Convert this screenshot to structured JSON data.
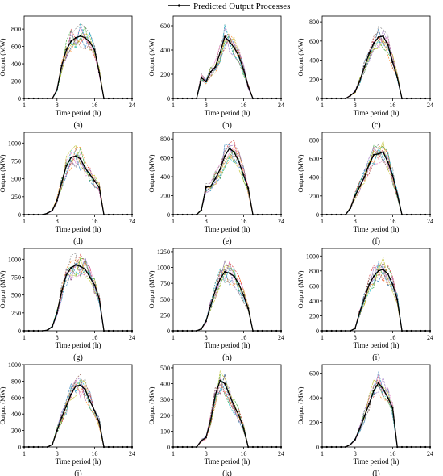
{
  "legend": {
    "label": "Predicted Output Processes"
  },
  "colors": {
    "predicted": "#000000",
    "scenarios": [
      "#1f77b4",
      "#ff7f0e",
      "#2ca02c",
      "#d62728",
      "#9467bd",
      "#8c564b",
      "#e377c2",
      "#7f7f7f",
      "#bcbd22",
      "#17becf"
    ]
  },
  "chart_data": [
    {
      "type": "line",
      "panel_label": "(a)",
      "xlabel": "Time period (h)",
      "ylabel": "Output (MW)",
      "x_ticks": [
        1,
        8,
        16,
        24
      ],
      "y_ticks": [
        0,
        200,
        400,
        600,
        800
      ],
      "xlim": [
        1,
        24
      ],
      "ylim": [
        0,
        950
      ],
      "x": [
        1,
        2,
        3,
        4,
        5,
        6,
        7,
        8,
        9,
        10,
        11,
        12,
        13,
        14,
        15,
        16,
        17,
        18,
        19,
        20,
        21,
        22,
        23,
        24
      ],
      "series": [
        {
          "values": [
            0,
            0,
            0,
            0,
            0,
            0,
            0,
            100,
            380,
            560,
            660,
            700,
            720,
            700,
            650,
            560,
            300,
            0,
            0,
            0,
            0,
            0,
            0,
            0
          ]
        }
      ]
    },
    {
      "type": "line",
      "panel_label": "(b)",
      "xlabel": "Time period (h)",
      "ylabel": "Output (MW)",
      "x_ticks": [
        1,
        8,
        16,
        24
      ],
      "y_ticks": [
        0,
        200,
        400,
        600
      ],
      "xlim": [
        1,
        24
      ],
      "ylim": [
        0,
        680
      ],
      "x": [
        1,
        2,
        3,
        4,
        5,
        6,
        7,
        8,
        9,
        10,
        11,
        12,
        13,
        14,
        15,
        16,
        17,
        18,
        19,
        20,
        21,
        22,
        23,
        24
      ],
      "series": [
        {
          "values": [
            0,
            0,
            0,
            0,
            0,
            0,
            170,
            140,
            220,
            260,
            380,
            510,
            470,
            420,
            350,
            240,
            100,
            0,
            0,
            0,
            0,
            0,
            0,
            0
          ]
        }
      ]
    },
    {
      "type": "line",
      "panel_label": "(c)",
      "xlabel": "Time period (h)",
      "ylabel": "Output (MW)",
      "x_ticks": [
        1,
        8,
        16,
        24
      ],
      "y_ticks": [
        0,
        200,
        400,
        600,
        800
      ],
      "xlim": [
        1,
        24
      ],
      "ylim": [
        0,
        860
      ],
      "x": [
        1,
        2,
        3,
        4,
        5,
        6,
        7,
        8,
        9,
        10,
        11,
        12,
        13,
        14,
        15,
        16,
        17,
        18,
        19,
        20,
        21,
        22,
        23,
        24
      ],
      "series": [
        {
          "values": [
            0,
            0,
            0,
            0,
            0,
            0,
            30,
            70,
            180,
            330,
            470,
            580,
            640,
            650,
            560,
            380,
            220,
            0,
            0,
            0,
            0,
            0,
            0,
            0
          ]
        }
      ]
    },
    {
      "type": "line",
      "panel_label": "(d)",
      "xlabel": "Time period (h)",
      "ylabel": "Output (MW)",
      "x_ticks": [
        1,
        8,
        16,
        24
      ],
      "y_ticks": [
        0,
        250,
        500,
        750,
        1000
      ],
      "xlim": [
        1,
        24
      ],
      "ylim": [
        0,
        1150
      ],
      "x": [
        1,
        2,
        3,
        4,
        5,
        6,
        7,
        8,
        9,
        10,
        11,
        12,
        13,
        14,
        15,
        16,
        17,
        18,
        19,
        20,
        21,
        22,
        23,
        24
      ],
      "series": [
        {
          "values": [
            0,
            0,
            0,
            0,
            0,
            20,
            60,
            200,
            450,
            680,
            800,
            820,
            780,
            650,
            560,
            470,
            380,
            0,
            0,
            0,
            0,
            0,
            0,
            0
          ]
        }
      ]
    },
    {
      "type": "line",
      "panel_label": "(e)",
      "xlabel": "Time period (h)",
      "ylabel": "Output (MW)",
      "x_ticks": [
        1,
        8,
        16,
        24
      ],
      "y_ticks": [
        0,
        200,
        400,
        600,
        800
      ],
      "xlim": [
        1,
        24
      ],
      "ylim": [
        0,
        870
      ],
      "x": [
        1,
        2,
        3,
        4,
        5,
        6,
        7,
        8,
        9,
        10,
        11,
        12,
        13,
        14,
        15,
        16,
        17,
        18,
        19,
        20,
        21,
        22,
        23,
        24
      ],
      "series": [
        {
          "values": [
            0,
            0,
            0,
            0,
            0,
            0,
            50,
            290,
            300,
            380,
            480,
            620,
            700,
            660,
            560,
            420,
            280,
            0,
            0,
            0,
            0,
            0,
            0,
            0
          ]
        }
      ]
    },
    {
      "type": "line",
      "panel_label": "(f)",
      "xlabel": "Time period (h)",
      "ylabel": "Output (MW)",
      "x_ticks": [
        1,
        8,
        16,
        24
      ],
      "y_ticks": [
        0,
        200,
        400,
        600,
        800
      ],
      "xlim": [
        1,
        24
      ],
      "ylim": [
        0,
        880
      ],
      "x": [
        1,
        2,
        3,
        4,
        5,
        6,
        7,
        8,
        9,
        10,
        11,
        12,
        13,
        14,
        15,
        16,
        17,
        18,
        19,
        20,
        21,
        22,
        23,
        24
      ],
      "series": [
        {
          "values": [
            0,
            0,
            0,
            0,
            0,
            0,
            70,
            200,
            300,
            400,
            540,
            640,
            650,
            670,
            560,
            420,
            220,
            0,
            0,
            0,
            0,
            0,
            0,
            0
          ]
        }
      ]
    },
    {
      "type": "line",
      "panel_label": "(g)",
      "xlabel": "Time period (h)",
      "ylabel": "Output (MW)",
      "x_ticks": [
        1,
        8,
        16,
        24
      ],
      "y_ticks": [
        0,
        250,
        500,
        750,
        1000
      ],
      "xlim": [
        1,
        24
      ],
      "ylim": [
        0,
        1150
      ],
      "x": [
        1,
        2,
        3,
        4,
        5,
        6,
        7,
        8,
        9,
        10,
        11,
        12,
        13,
        14,
        15,
        16,
        17,
        18,
        19,
        20,
        21,
        22,
        23,
        24
      ],
      "series": [
        {
          "values": [
            0,
            0,
            0,
            0,
            0,
            10,
            60,
            250,
            550,
            780,
            880,
            920,
            900,
            860,
            750,
            640,
            450,
            0,
            0,
            0,
            0,
            0,
            0,
            0
          ]
        }
      ]
    },
    {
      "type": "line",
      "panel_label": "(h)",
      "xlabel": "Time period (h)",
      "ylabel": "Output (MW)",
      "x_ticks": [
        1,
        8,
        16,
        24
      ],
      "y_ticks": [
        0,
        250,
        500,
        750,
        1000,
        1250
      ],
      "xlim": [
        1,
        24
      ],
      "ylim": [
        0,
        1300
      ],
      "x": [
        1,
        2,
        3,
        4,
        5,
        6,
        7,
        8,
        9,
        10,
        11,
        12,
        13,
        14,
        15,
        16,
        17,
        18,
        19,
        20,
        21,
        22,
        23,
        24
      ],
      "series": [
        {
          "values": [
            0,
            0,
            0,
            0,
            0,
            0,
            30,
            150,
            400,
            640,
            820,
            930,
            910,
            860,
            740,
            560,
            350,
            0,
            0,
            0,
            0,
            0,
            0,
            0
          ]
        }
      ]
    },
    {
      "type": "line",
      "panel_label": "(i)",
      "xlabel": "Time period (h)",
      "ylabel": "Output (MW)",
      "x_ticks": [
        1,
        8,
        16,
        24
      ],
      "y_ticks": [
        0,
        200,
        400,
        600,
        800,
        1000
      ],
      "xlim": [
        1,
        24
      ],
      "ylim": [
        0,
        1100
      ],
      "x": [
        1,
        2,
        3,
        4,
        5,
        6,
        7,
        8,
        9,
        10,
        11,
        12,
        13,
        14,
        15,
        16,
        17,
        18,
        19,
        20,
        21,
        22,
        23,
        24
      ],
      "series": [
        {
          "values": [
            0,
            0,
            0,
            0,
            0,
            0,
            0,
            30,
            250,
            430,
            620,
            730,
            800,
            820,
            760,
            620,
            420,
            0,
            0,
            0,
            0,
            0,
            0,
            0
          ]
        }
      ]
    },
    {
      "type": "line",
      "panel_label": "(j)",
      "xlabel": "Time period (h)",
      "ylabel": "Output (MW)",
      "x_ticks": [
        1,
        8,
        16,
        24
      ],
      "y_ticks": [
        0,
        200,
        400,
        600,
        800,
        1000
      ],
      "xlim": [
        1,
        24
      ],
      "ylim": [
        0,
        1000
      ],
      "x": [
        1,
        2,
        3,
        4,
        5,
        6,
        7,
        8,
        9,
        10,
        11,
        12,
        13,
        14,
        15,
        16,
        17,
        18,
        19,
        20,
        21,
        22,
        23,
        24
      ],
      "series": [
        {
          "values": [
            0,
            0,
            0,
            0,
            0,
            0,
            30,
            200,
            360,
            500,
            640,
            740,
            750,
            700,
            560,
            440,
            300,
            0,
            0,
            0,
            0,
            0,
            0,
            0
          ]
        }
      ]
    },
    {
      "type": "line",
      "panel_label": "(k)",
      "xlabel": "Time period (h)",
      "ylabel": "Output (MW)",
      "x_ticks": [
        1,
        8,
        16,
        24
      ],
      "y_ticks": [
        0,
        100,
        200,
        300,
        400,
        500
      ],
      "xlim": [
        1,
        24
      ],
      "ylim": [
        0,
        520
      ],
      "x": [
        1,
        2,
        3,
        4,
        5,
        6,
        7,
        8,
        9,
        10,
        11,
        12,
        13,
        14,
        15,
        16,
        17,
        18,
        19,
        20,
        21,
        22,
        23,
        24
      ],
      "series": [
        {
          "values": [
            0,
            0,
            0,
            0,
            0,
            0,
            40,
            60,
            170,
            330,
            420,
            400,
            330,
            260,
            200,
            120,
            0,
            0,
            0,
            0,
            0,
            0,
            0,
            0
          ]
        }
      ]
    },
    {
      "type": "line",
      "panel_label": "(l)",
      "xlabel": "Time period (h)",
      "ylabel": "Output (MW)",
      "x_ticks": [
        1,
        8,
        16,
        24
      ],
      "y_ticks": [
        0,
        200,
        400,
        600
      ],
      "xlim": [
        1,
        24
      ],
      "ylim": [
        0,
        670
      ],
      "x": [
        1,
        2,
        3,
        4,
        5,
        6,
        7,
        8,
        9,
        10,
        11,
        12,
        13,
        14,
        15,
        16,
        17,
        18,
        19,
        20,
        21,
        22,
        23,
        24
      ],
      "series": [
        {
          "values": [
            0,
            0,
            0,
            0,
            0,
            0,
            20,
            60,
            150,
            250,
            350,
            460,
            520,
            470,
            400,
            320,
            0,
            0,
            0,
            0,
            0,
            0,
            0,
            0
          ]
        }
      ]
    }
  ]
}
